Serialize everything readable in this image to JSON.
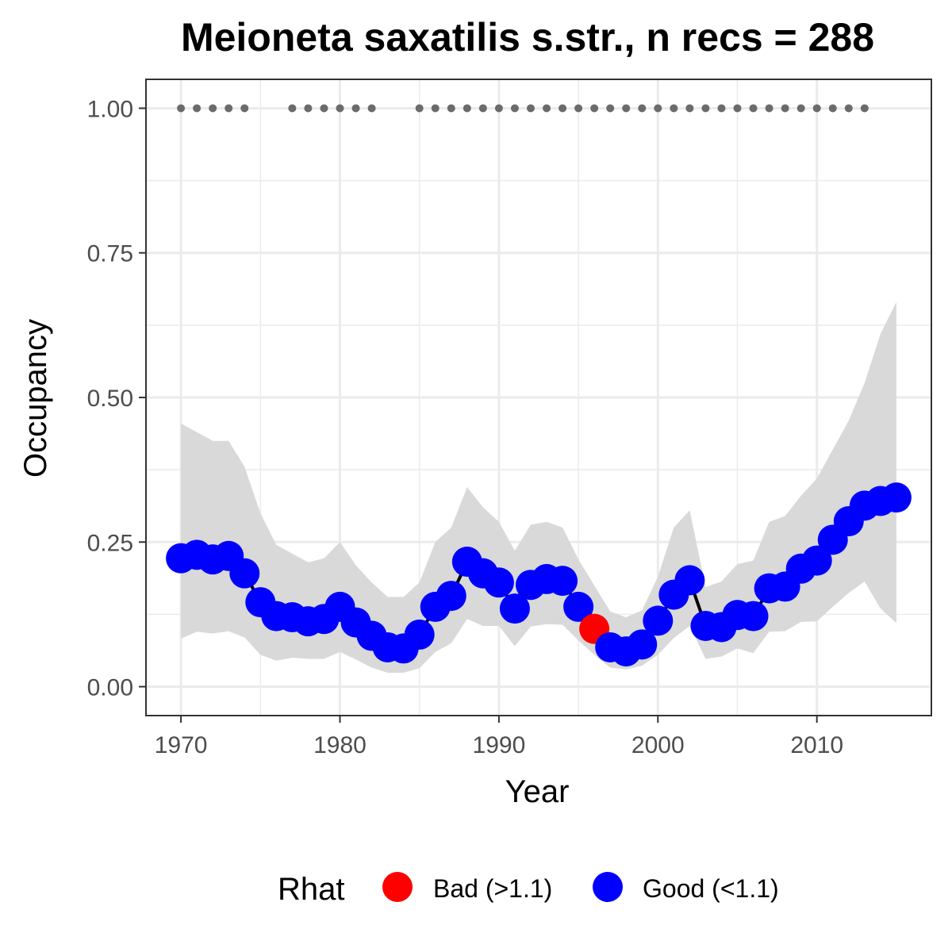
{
  "chart_data": {
    "type": "line",
    "title": "Meioneta saxatilis s.str., n recs = 288",
    "xlabel": "Year",
    "ylabel": "Occupancy",
    "xlim": [
      1967.8,
      2017.2
    ],
    "ylim": [
      -0.05,
      1.05
    ],
    "x_ticks": [
      1970,
      1980,
      1990,
      2000,
      2010
    ],
    "x_tick_labels": [
      "1970",
      "1980",
      "1990",
      "2000",
      "2010"
    ],
    "y_ticks": [
      0,
      0.25,
      0.5,
      0.75,
      1.0
    ],
    "y_tick_labels": [
      "0.00",
      "0.25",
      "0.50",
      "0.75",
      "1.00"
    ],
    "grid": true,
    "legend_position": "bottom",
    "legend": {
      "title": "Rhat",
      "entries": [
        {
          "label": "Bad (>1.1)",
          "color": "#ff0000"
        },
        {
          "label": "Good (<1.1)",
          "color": "#0000ff"
        }
      ]
    },
    "colors": {
      "good": "#0000ff",
      "bad": "#ff0000",
      "ribbon": "#d9d9d9",
      "line": "#000000",
      "record_dots": "#6b6b6b"
    },
    "series": [
      {
        "years": [
          1970,
          1971,
          1972,
          1973,
          1974,
          1975,
          1976,
          1977,
          1978,
          1979,
          1980,
          1981,
          1982,
          1983,
          1984,
          1985,
          1986,
          1987,
          1988,
          1989,
          1990,
          1991,
          1992,
          1993,
          1994,
          1995,
          1996,
          1997,
          1998,
          1999,
          2000,
          2001,
          2002,
          2003,
          2004,
          2005,
          2006,
          2007,
          2008,
          2009,
          2010,
          2011,
          2012,
          2013,
          2014,
          2015
        ],
        "occupancy": [
          0.222,
          0.228,
          0.22,
          0.226,
          0.196,
          0.146,
          0.122,
          0.12,
          0.113,
          0.117,
          0.138,
          0.111,
          0.088,
          0.068,
          0.066,
          0.09,
          0.138,
          0.157,
          0.216,
          0.196,
          0.18,
          0.135,
          0.176,
          0.186,
          0.183,
          0.138,
          0.1,
          0.068,
          0.061,
          0.073,
          0.114,
          0.159,
          0.184,
          0.105,
          0.103,
          0.124,
          0.122,
          0.17,
          0.173,
          0.204,
          0.218,
          0.254,
          0.286,
          0.313,
          0.321,
          0.327
        ],
        "rhat_status": [
          "good",
          "good",
          "good",
          "good",
          "good",
          "good",
          "good",
          "good",
          "good",
          "good",
          "good",
          "good",
          "good",
          "good",
          "good",
          "good",
          "good",
          "good",
          "good",
          "good",
          "good",
          "good",
          "good",
          "good",
          "good",
          "good",
          "bad",
          "good",
          "good",
          "good",
          "good",
          "good",
          "good",
          "good",
          "good",
          "good",
          "good",
          "good",
          "good",
          "good",
          "good",
          "good",
          "good",
          "good",
          "good",
          "good"
        ],
        "ci_lower": [
          0.083,
          0.095,
          0.092,
          0.096,
          0.085,
          0.055,
          0.045,
          0.05,
          0.048,
          0.048,
          0.06,
          0.047,
          0.033,
          0.024,
          0.024,
          0.032,
          0.06,
          0.075,
          0.117,
          0.105,
          0.105,
          0.07,
          0.104,
          0.108,
          0.107,
          0.08,
          0.055,
          0.033,
          0.03,
          0.036,
          0.055,
          0.084,
          0.105,
          0.048,
          0.052,
          0.066,
          0.058,
          0.095,
          0.096,
          0.112,
          0.113,
          0.138,
          0.162,
          0.182,
          0.135,
          0.11
        ],
        "ci_upper": [
          0.455,
          0.44,
          0.425,
          0.425,
          0.38,
          0.3,
          0.245,
          0.23,
          0.215,
          0.222,
          0.25,
          0.21,
          0.18,
          0.155,
          0.155,
          0.18,
          0.25,
          0.275,
          0.345,
          0.31,
          0.285,
          0.235,
          0.28,
          0.285,
          0.275,
          0.22,
          0.175,
          0.13,
          0.12,
          0.132,
          0.19,
          0.275,
          0.305,
          0.172,
          0.182,
          0.212,
          0.218,
          0.285,
          0.295,
          0.33,
          0.36,
          0.41,
          0.46,
          0.525,
          0.61,
          0.665
        ]
      }
    ],
    "record_years": [
      1970,
      1971,
      1972,
      1973,
      1974,
      1977,
      1978,
      1979,
      1980,
      1981,
      1982,
      1985,
      1986,
      1987,
      1988,
      1989,
      1990,
      1991,
      1992,
      1993,
      1994,
      1995,
      1996,
      1997,
      1998,
      1999,
      2000,
      2001,
      2002,
      2003,
      2004,
      2005,
      2006,
      2007,
      2008,
      2009,
      2010,
      2011,
      2012,
      2013
    ],
    "record_dot_value": 1.0
  }
}
